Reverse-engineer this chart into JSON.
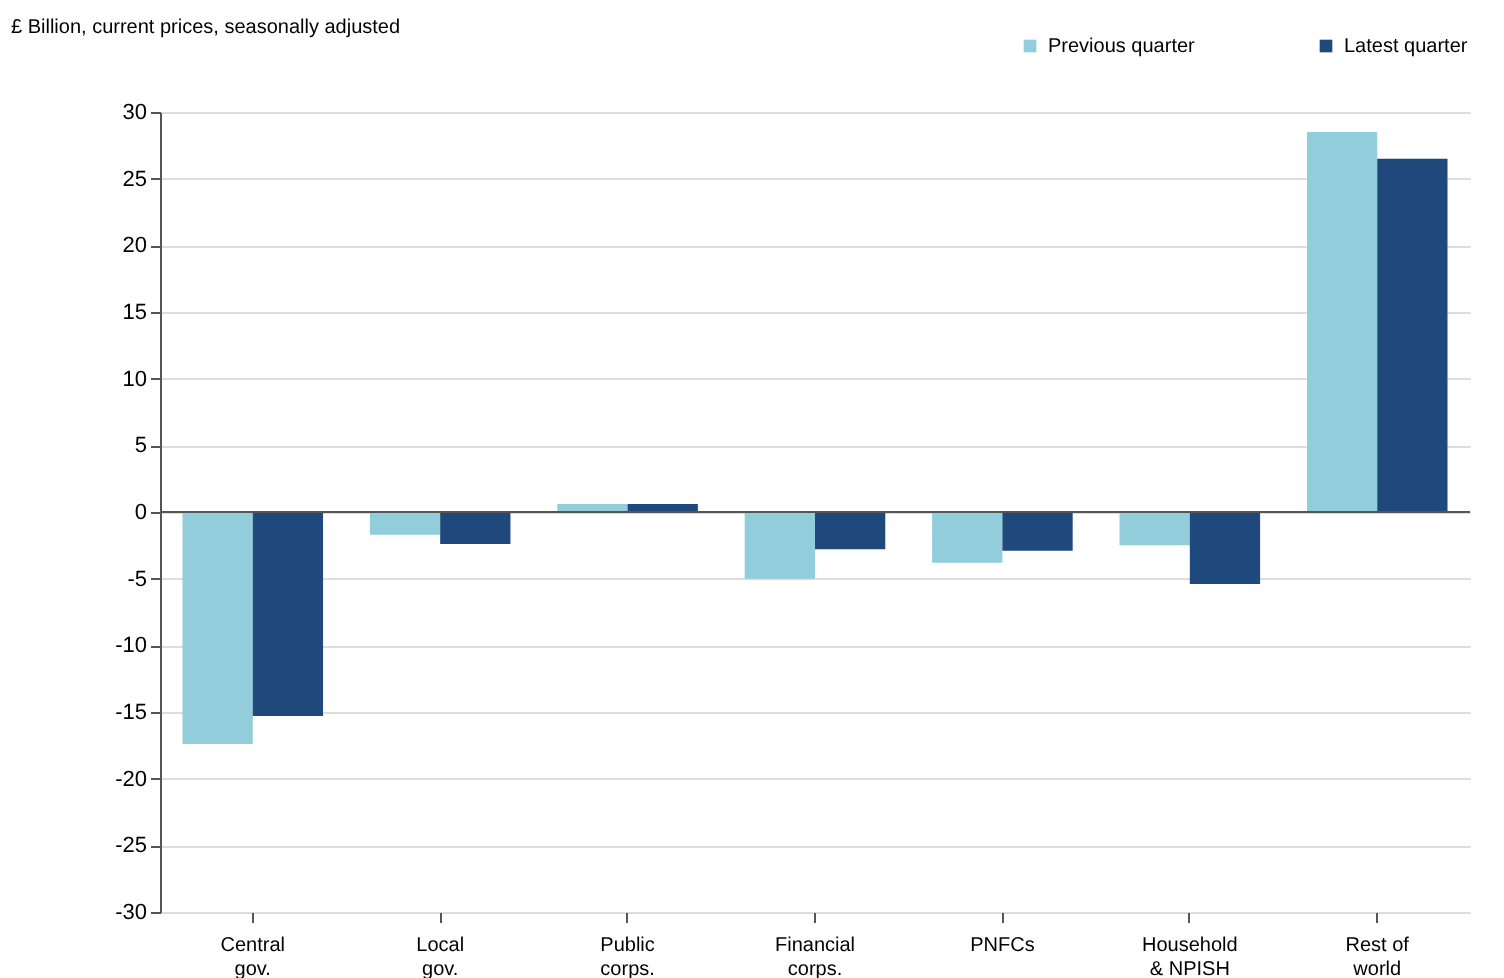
{
  "chart_data": {
    "type": "bar",
    "ylabel": "£ Billion, current prices, seasonally adjusted",
    "categories": [
      "Central\ngov.",
      "Local\ngov.",
      "Public\ncorps.",
      "Financial\ncorps.",
      "PNFCs",
      "Household\n& NPISH",
      "Rest of\nworld"
    ],
    "series": [
      {
        "name": "Previous quarter",
        "color": "#92cddc",
        "values": [
          -17.4,
          -1.7,
          0.6,
          -5.0,
          -3.8,
          -2.5,
          28.5
        ]
      },
      {
        "name": "Latest quarter",
        "color": "#1f497d",
        "values": [
          -15.3,
          -2.4,
          0.6,
          -2.8,
          -2.9,
          -5.4,
          26.5
        ]
      }
    ],
    "ylim": [
      -30,
      30
    ],
    "yticks": [
      -30,
      -25,
      -20,
      -15,
      -10,
      -5,
      0,
      5,
      10,
      15,
      20,
      25,
      30
    ],
    "grid": "y",
    "legend": "top right"
  }
}
